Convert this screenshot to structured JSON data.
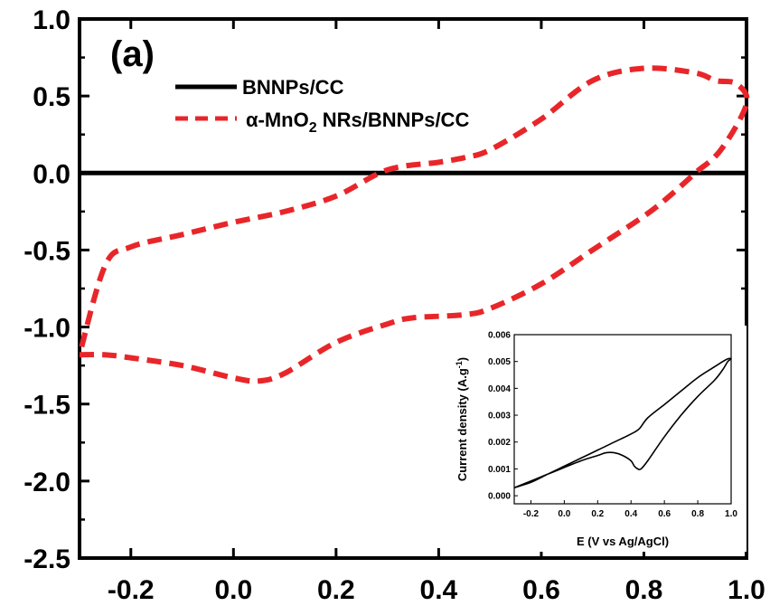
{
  "chart_data": [
    {
      "type": "line",
      "title": "",
      "panel_label": "(a)",
      "xlabel": "",
      "ylabel": "",
      "xlim": [
        -0.3,
        1.0
      ],
      "ylim": [
        -2.5,
        1.0
      ],
      "x_ticks": [
        -0.2,
        0.0,
        0.2,
        0.4,
        0.6,
        0.8,
        1.0
      ],
      "x_tick_labels": [
        "-0.2",
        "0.0",
        "0.2",
        "0.4",
        "0.6",
        "0.8",
        "1.0"
      ],
      "y_ticks": [
        1.0,
        0.5,
        0.0,
        -0.5,
        -1.0,
        -1.5,
        -2.0,
        -2.5
      ],
      "y_tick_labels": [
        "1.0",
        "0.5",
        "0.0",
        "-0.5",
        "-1.0",
        "-1.5",
        "-2.0",
        "-2.5"
      ],
      "grid": false,
      "legend_position": "top-left",
      "series": [
        {
          "name": "BNNPs/CC",
          "color": "#000000",
          "style": "solid",
          "x": [
            -0.3,
            1.0
          ],
          "y": [
            0.0,
            0.0
          ]
        },
        {
          "name": "α-MnO2 NRs/BNNPs/CC",
          "legend_parts": [
            "α-MnO",
            "2",
            " NRs/BNNPs/CC"
          ],
          "color": "#e8262a",
          "style": "dashed",
          "x": [
            -0.3,
            -0.25,
            -0.2,
            -0.1,
            0.0,
            0.05,
            0.1,
            0.2,
            0.3,
            0.35,
            0.45,
            0.5,
            0.6,
            0.7,
            0.8,
            0.85,
            0.9,
            0.95,
            1.0,
            0.98,
            0.94,
            0.9,
            0.8,
            0.7,
            0.6,
            0.5,
            0.45,
            0.4,
            0.3,
            0.2,
            0.1,
            0.0,
            -0.1,
            -0.2,
            -0.25,
            -0.3
          ],
          "y": [
            -1.18,
            -1.18,
            -1.2,
            -1.25,
            -1.33,
            -1.35,
            -1.3,
            -1.1,
            -0.98,
            -0.94,
            -0.92,
            -0.88,
            -0.72,
            -0.5,
            -0.28,
            -0.15,
            0.0,
            0.15,
            0.45,
            0.58,
            0.6,
            0.65,
            0.68,
            0.6,
            0.35,
            0.15,
            0.1,
            0.07,
            0.02,
            -0.15,
            -0.25,
            -0.32,
            -0.4,
            -0.48,
            -0.6,
            -1.18
          ]
        }
      ]
    },
    {
      "type": "line",
      "title": "",
      "xlabel": "E (V vs Ag/AgCl)",
      "ylabel_parts": [
        "Current density (A.g",
        "-1",
        ")"
      ],
      "xlim": [
        -0.3,
        1.0
      ],
      "ylim": [
        -0.0003,
        0.006
      ],
      "x_ticks": [
        -0.2,
        0.0,
        0.2,
        0.4,
        0.6,
        0.8,
        1.0
      ],
      "x_tick_labels": [
        "-0.2",
        "0.0",
        "0.2",
        "0.4",
        "0.6",
        "0.8",
        "1.0"
      ],
      "y_ticks": [
        0.0,
        0.001,
        0.002,
        0.003,
        0.004,
        0.005,
        0.006
      ],
      "y_tick_labels": [
        "0.000",
        "0.001",
        "0.002",
        "0.003",
        "0.004",
        "0.005",
        "0.006"
      ],
      "grid": false,
      "series": [
        {
          "color": "#000000",
          "style": "solid",
          "x": [
            -0.3,
            -0.1,
            0.1,
            0.2,
            0.25,
            0.3,
            0.35,
            0.4,
            0.42,
            0.44,
            0.46,
            0.5,
            0.6,
            0.7,
            0.8,
            0.9,
            0.95,
            0.98,
            1.0,
            0.98,
            0.95,
            0.9,
            0.8,
            0.7,
            0.6,
            0.5,
            0.45,
            0.4,
            0.3,
            0.2,
            0.1,
            0.0,
            -0.1,
            -0.2,
            -0.3
          ],
          "y": [
            0.0003,
            0.0008,
            0.0013,
            0.0015,
            0.0016,
            0.0016,
            0.0015,
            0.0013,
            0.0011,
            0.001,
            0.001,
            0.0013,
            0.0022,
            0.003,
            0.0037,
            0.0043,
            0.0047,
            0.005,
            0.0051,
            0.0051,
            0.005,
            0.0048,
            0.0044,
            0.0039,
            0.0034,
            0.0029,
            0.0025,
            0.0023,
            0.002,
            0.0017,
            0.0014,
            0.0011,
            0.0008,
            0.0005,
            0.0003
          ]
        }
      ]
    }
  ]
}
